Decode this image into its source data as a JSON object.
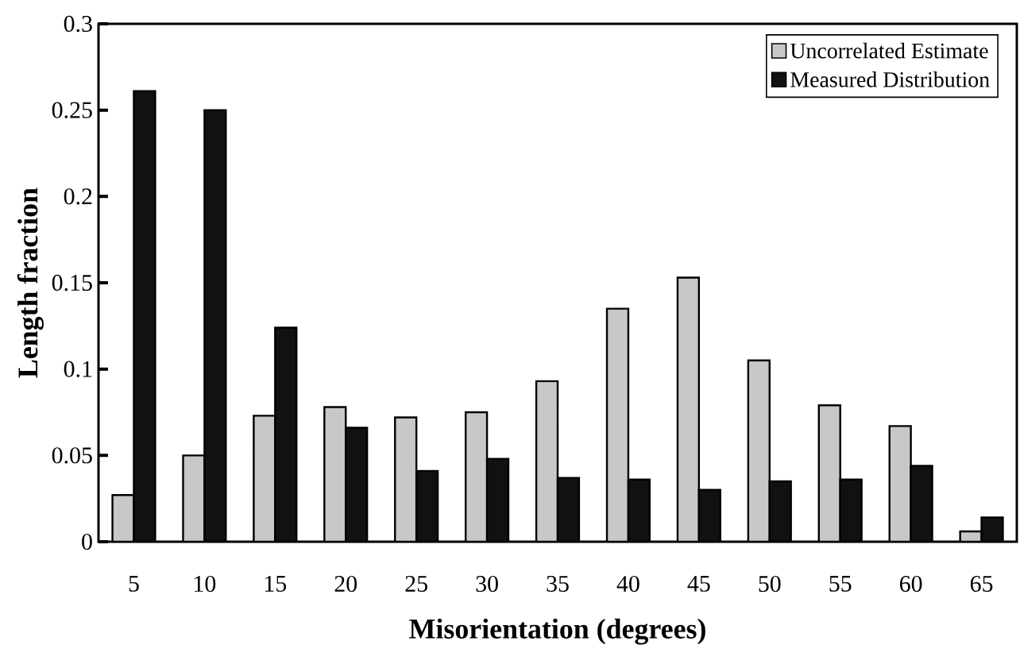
{
  "chart_data": {
    "type": "bar",
    "xlabel": "Misorientation (degrees)",
    "ylabel": "Length fraction",
    "categories": [
      "5",
      "10",
      "15",
      "20",
      "25",
      "30",
      "35",
      "40",
      "45",
      "50",
      "55",
      "60",
      "65"
    ],
    "series": [
      {
        "name": "Uncorrelated Estimate",
        "color": "#c8c8c8",
        "values": [
          0.027,
          0.05,
          0.073,
          0.078,
          0.072,
          0.075,
          0.093,
          0.135,
          0.153,
          0.105,
          0.079,
          0.067,
          0.006
        ]
      },
      {
        "name": "Measured Distribution",
        "color": "#111111",
        "values": [
          0.261,
          0.25,
          0.124,
          0.066,
          0.041,
          0.048,
          0.037,
          0.036,
          0.03,
          0.035,
          0.036,
          0.044,
          0.014
        ]
      }
    ],
    "ylim": [
      0,
      0.3
    ],
    "yticks": [
      0,
      0.05,
      0.1,
      0.15,
      0.2,
      0.25,
      0.3
    ],
    "grid": false,
    "legend": "top right"
  }
}
